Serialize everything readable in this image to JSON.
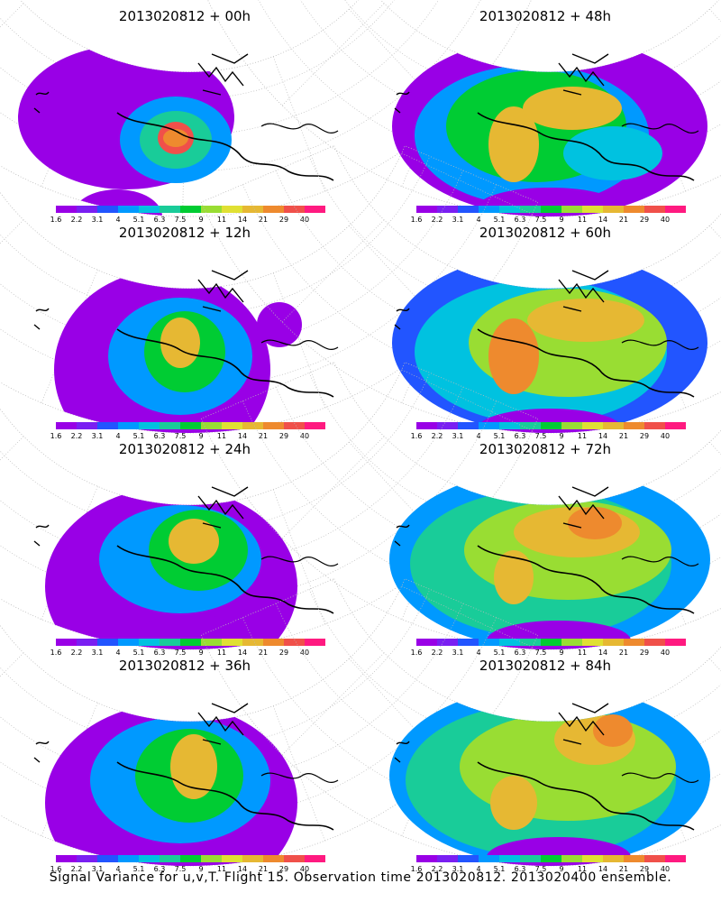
{
  "panels": [
    {
      "title": "2013020812 + 00h"
    },
    {
      "title": "2013020812 + 48h"
    },
    {
      "title": "2013020812 + 12h"
    },
    {
      "title": "2013020812 + 60h"
    },
    {
      "title": "2013020812 + 24h"
    },
    {
      "title": "2013020812 + 72h"
    },
    {
      "title": "2013020812 + 36h"
    },
    {
      "title": "2013020812 + 84h"
    }
  ],
  "colorbar": {
    "labels": [
      "1.6",
      "2.2",
      "3.1",
      "4",
      "5.1",
      "6.3",
      "7.5",
      "9",
      "11",
      "14",
      "21",
      "29",
      "40"
    ],
    "colors": [
      "#9900e6",
      "#7a1ff2",
      "#2255ff",
      "#0099ff",
      "#00c2e0",
      "#19cc99",
      "#00cc33",
      "#99dd33",
      "#e0e033",
      "#e6b833",
      "#ee8a2e",
      "#f0504a",
      "#ff1a80"
    ]
  },
  "caption": "Signal Variance for u,v,T. Flight 15. Observation time 2013020812. 2013020400 ensemble."
}
